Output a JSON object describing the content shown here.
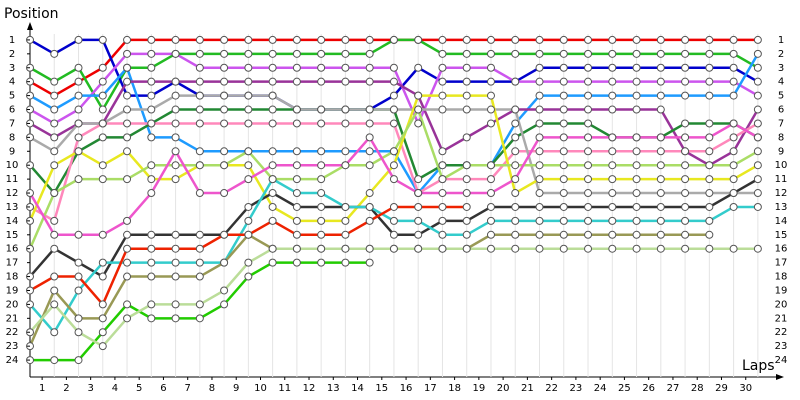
{
  "chart_data": {
    "type": "line",
    "x_label": "Laps",
    "y_label": "Position",
    "x": [
      0,
      1,
      2,
      3,
      4,
      5,
      6,
      7,
      8,
      9,
      10,
      11,
      12,
      13,
      14,
      15,
      16,
      17,
      18,
      19,
      20,
      21,
      22,
      23,
      24,
      25,
      26,
      27,
      28,
      29,
      30
    ],
    "xlim": [
      0,
      30.5
    ],
    "xticks": [
      {
        "value": 0.5,
        "label": "1"
      },
      {
        "value": 1.5,
        "label": "2"
      },
      {
        "value": 2.5,
        "label": "3"
      },
      {
        "value": 3.5,
        "label": "4"
      },
      {
        "value": 4.5,
        "label": "5"
      },
      {
        "value": 5.5,
        "label": "6"
      },
      {
        "value": 6.5,
        "label": "7"
      },
      {
        "value": 7.5,
        "label": "8"
      },
      {
        "value": 8.5,
        "label": "9"
      },
      {
        "value": 9.5,
        "label": "10"
      },
      {
        "value": 10.5,
        "label": "11"
      },
      {
        "value": 11.5,
        "label": "12"
      },
      {
        "value": 12.5,
        "label": "13"
      },
      {
        "value": 13.5,
        "label": "14"
      },
      {
        "value": 14.5,
        "label": "15"
      },
      {
        "value": 15.5,
        "label": "16"
      },
      {
        "value": 16.5,
        "label": "17"
      },
      {
        "value": 17.5,
        "label": "18"
      },
      {
        "value": 18.5,
        "label": "19"
      },
      {
        "value": 19.5,
        "label": "20"
      },
      {
        "value": 20.5,
        "label": "21"
      },
      {
        "value": 21.5,
        "label": "22"
      },
      {
        "value": 22.5,
        "label": "23"
      },
      {
        "value": 23.5,
        "label": "24"
      },
      {
        "value": 24.5,
        "label": "25"
      },
      {
        "value": 25.5,
        "label": "26"
      },
      {
        "value": 26.5,
        "label": "27"
      },
      {
        "value": 27.5,
        "label": "28"
      },
      {
        "value": 28.5,
        "label": "29"
      },
      {
        "value": 29.5,
        "label": "30"
      }
    ],
    "ylim": [
      25,
      0
    ],
    "yticks": [
      1,
      2,
      3,
      4,
      5,
      6,
      7,
      8,
      9,
      10,
      11,
      12,
      13,
      14,
      15,
      16,
      17,
      18,
      19,
      20,
      21,
      22,
      23,
      24
    ],
    "grid": true,
    "series": [
      {
        "color": "#ee0000",
        "values": [
          4,
          5,
          4,
          3,
          1,
          1,
          1,
          1,
          1,
          1,
          1,
          1,
          1,
          1,
          1,
          1,
          1,
          1,
          1,
          1,
          1,
          1,
          1,
          1,
          1,
          1,
          1,
          1,
          1,
          1,
          1
        ]
      },
      {
        "color": "#22bb22",
        "values": [
          3,
          4,
          3,
          6,
          3,
          3,
          2,
          2,
          2,
          2,
          2,
          2,
          2,
          2,
          2,
          1,
          1,
          2,
          2,
          2,
          2,
          2,
          2,
          2,
          2,
          2,
          2,
          2,
          2,
          2,
          3
        ]
      },
      {
        "color": "#0000cc",
        "values": [
          1,
          2,
          1,
          1,
          5,
          5,
          4,
          5,
          5,
          5,
          5,
          6,
          6,
          6,
          6,
          5,
          3,
          4,
          4,
          4,
          4,
          3,
          3,
          3,
          3,
          3,
          3,
          3,
          3,
          3,
          4
        ]
      },
      {
        "color": "#cc55ee",
        "values": [
          6,
          7,
          6,
          4,
          2,
          2,
          2,
          3,
          3,
          3,
          3,
          3,
          3,
          3,
          3,
          3,
          7,
          3,
          3,
          3,
          4,
          4,
          4,
          4,
          4,
          4,
          4,
          4,
          4,
          4,
          5
        ]
      },
      {
        "color": "#1e9bff",
        "values": [
          5,
          6,
          5,
          5,
          3,
          8,
          8,
          9,
          9,
          9,
          9,
          9,
          9,
          9,
          9,
          9,
          12,
          10,
          10,
          10,
          7,
          5,
          5,
          5,
          5,
          5,
          5,
          5,
          5,
          5,
          2
        ]
      },
      {
        "color": "#993399",
        "values": [
          7,
          8,
          7,
          7,
          4,
          4,
          4,
          4,
          4,
          4,
          4,
          4,
          4,
          4,
          4,
          4,
          5,
          9,
          8,
          7,
          6,
          6,
          6,
          6,
          6,
          6,
          6,
          9,
          10,
          9,
          6
        ]
      },
      {
        "color": "#228833",
        "values": [
          10,
          12,
          9,
          8,
          8,
          7,
          6,
          6,
          6,
          6,
          6,
          6,
          6,
          6,
          6,
          6,
          11,
          10,
          10,
          10,
          8,
          7,
          7,
          7,
          8,
          8,
          8,
          7,
          7,
          7,
          8
        ]
      },
      {
        "color": "#ff88bb",
        "values": [
          13,
          14,
          8,
          7,
          7,
          7,
          7,
          7,
          7,
          7,
          7,
          7,
          7,
          7,
          7,
          7,
          12,
          11,
          11,
          11,
          9,
          9,
          9,
          9,
          9,
          9,
          9,
          9,
          9,
          8,
          7
        ]
      },
      {
        "color": "#aaaaaa",
        "values": [
          8,
          9,
          7,
          7,
          6,
          6,
          5,
          5,
          5,
          5,
          5,
          6,
          6,
          6,
          6,
          6,
          6,
          6,
          6,
          6,
          6,
          12,
          12,
          12,
          12,
          12,
          12,
          12,
          12,
          12,
          12
        ]
      },
      {
        "color": "#e8e820",
        "values": [
          14,
          10,
          9,
          10,
          9,
          11,
          11,
          10,
          10,
          10,
          13,
          14,
          14,
          14,
          12,
          10,
          5,
          5,
          5,
          5,
          12,
          11,
          11,
          11,
          11,
          11,
          11,
          11,
          11,
          11,
          10
        ]
      },
      {
        "color": "#aadd66",
        "values": [
          16,
          12,
          11,
          11,
          11,
          10,
          10,
          10,
          10,
          9,
          11,
          11,
          11,
          10,
          10,
          9,
          6,
          11,
          10,
          10,
          10,
          10,
          10,
          10,
          10,
          10,
          10,
          10,
          10,
          10,
          9
        ]
      },
      {
        "color": "#333333",
        "values": [
          18,
          16,
          17,
          18,
          15,
          15,
          15,
          15,
          15,
          13,
          12,
          13,
          13,
          13,
          13,
          15,
          15,
          14,
          14,
          13,
          13,
          13,
          13,
          13,
          13,
          13,
          13,
          13,
          13,
          12,
          11
        ]
      },
      {
        "color": "#33cccc",
        "values": [
          20,
          22,
          19,
          17,
          17,
          17,
          17,
          17,
          17,
          14,
          11,
          12,
          12,
          13,
          13,
          14,
          14,
          15,
          15,
          14,
          14,
          14,
          14,
          14,
          14,
          14,
          14,
          14,
          14,
          13,
          13
        ]
      },
      {
        "color": "#999955",
        "values": [
          23,
          19,
          21,
          21,
          18,
          18,
          18,
          18,
          17,
          15,
          16,
          16,
          16,
          16,
          16,
          16,
          16,
          16,
          16,
          15,
          15,
          15,
          15,
          15,
          15,
          15,
          15,
          15,
          15,
          null,
          null
        ]
      },
      {
        "color": "#ee2200",
        "values": [
          19,
          18,
          18,
          20,
          16,
          16,
          16,
          16,
          15,
          15,
          14,
          15,
          15,
          15,
          14,
          13,
          13,
          13,
          13,
          null,
          null,
          null,
          null,
          null,
          null,
          null,
          null,
          null,
          null,
          null,
          null
        ]
      },
      {
        "color": "#22cc00",
        "values": [
          24,
          24,
          24,
          22,
          20,
          21,
          21,
          21,
          20,
          18,
          17,
          17,
          17,
          17,
          17,
          null,
          null,
          null,
          null,
          null,
          null,
          null,
          null,
          null,
          null,
          null,
          null,
          null,
          null,
          null,
          null
        ]
      },
      {
        "color": "#ee55cc",
        "values": [
          12,
          15,
          15,
          15,
          14,
          12,
          9,
          12,
          12,
          11,
          10,
          10,
          10,
          10,
          8,
          11,
          12,
          12,
          12,
          12,
          11,
          8,
          8,
          8,
          8,
          8,
          8,
          8,
          8,
          7,
          8
        ]
      },
      {
        "color": "#bbdd99",
        "values": [
          22,
          20,
          22,
          23,
          21,
          20,
          20,
          20,
          19,
          17,
          16,
          16,
          16,
          16,
          16,
          16,
          16,
          16,
          16,
          16,
          16,
          16,
          16,
          16,
          16,
          16,
          16,
          16,
          16,
          16,
          16
        ]
      }
    ]
  }
}
